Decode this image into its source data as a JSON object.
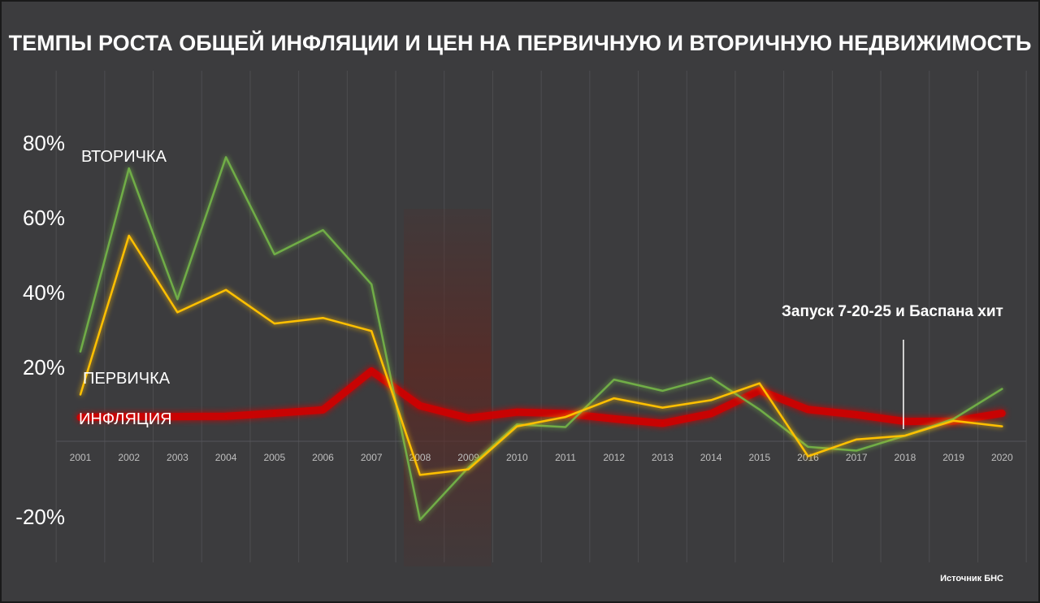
{
  "colors": {
    "background": "#3c3c3e",
    "grid": "#4d4d50",
    "primary_series": "#ffc000",
    "secondary_series": "#70ad47",
    "inflation_series": "#d00000",
    "crisis_band": "#5a2a25"
  },
  "chart_data": {
    "type": "line",
    "title": "ТЕМПЫ РОСТА ОБЩЕЙ ИНФЛЯЦИИ И ЦЕН НА ПЕРВИЧНУЮ И ВТОРИЧНУЮ НЕДВИЖИМОСТЬ",
    "xlabel": "",
    "ylabel": "",
    "categories": [
      "2001",
      "2002",
      "2003",
      "2004",
      "2005",
      "2006",
      "2007",
      "2008",
      "2009",
      "2010",
      "2011",
      "2012",
      "2013",
      "2014",
      "2015",
      "2016",
      "2017",
      "2018",
      "2019",
      "2020"
    ],
    "ylim": [
      -20,
      80
    ],
    "yticks": [
      {
        "value": 80,
        "label": "80%"
      },
      {
        "value": 60,
        "label": "60%"
      },
      {
        "value": 40,
        "label": "40%"
      },
      {
        "value": 20,
        "label": "20%"
      },
      {
        "value": -20,
        "label": "-20%"
      }
    ],
    "grid": true,
    "highlight_band": {
      "from": "2008",
      "to": "2009"
    },
    "series": [
      {
        "name": "ВТОРИЧКА",
        "color": "#70ad47",
        "values": [
          24,
          73,
          38,
          76,
          50,
          56.5,
          42,
          -21,
          -7,
          4.5,
          3.8,
          16.5,
          13.5,
          17,
          8.5,
          -1.5,
          -2.5,
          1.5,
          6,
          14
        ]
      },
      {
        "name": "ПЕРВИЧКА",
        "color": "#ffc000",
        "values": [
          12.5,
          55,
          34.5,
          40.5,
          31.5,
          33,
          29.5,
          -9,
          -7.5,
          4,
          6.5,
          11.5,
          9,
          11,
          15.5,
          -4,
          0.5,
          1.5,
          5.5,
          4
        ]
      },
      {
        "name": "ИНФЛЯЦИЯ",
        "color": "#d00000",
        "values": [
          6.4,
          6.6,
          6.6,
          6.7,
          7.5,
          8.4,
          18.8,
          9.5,
          6.2,
          7.8,
          7.4,
          6.0,
          4.8,
          7.4,
          13.6,
          8.5,
          7.1,
          5.3,
          5.4,
          7.5
        ]
      }
    ],
    "annotations": [
      {
        "text": "Запуск  7-20-25 и Баспана хит",
        "at": "2018"
      }
    ]
  },
  "source_text": "Источник БНС"
}
